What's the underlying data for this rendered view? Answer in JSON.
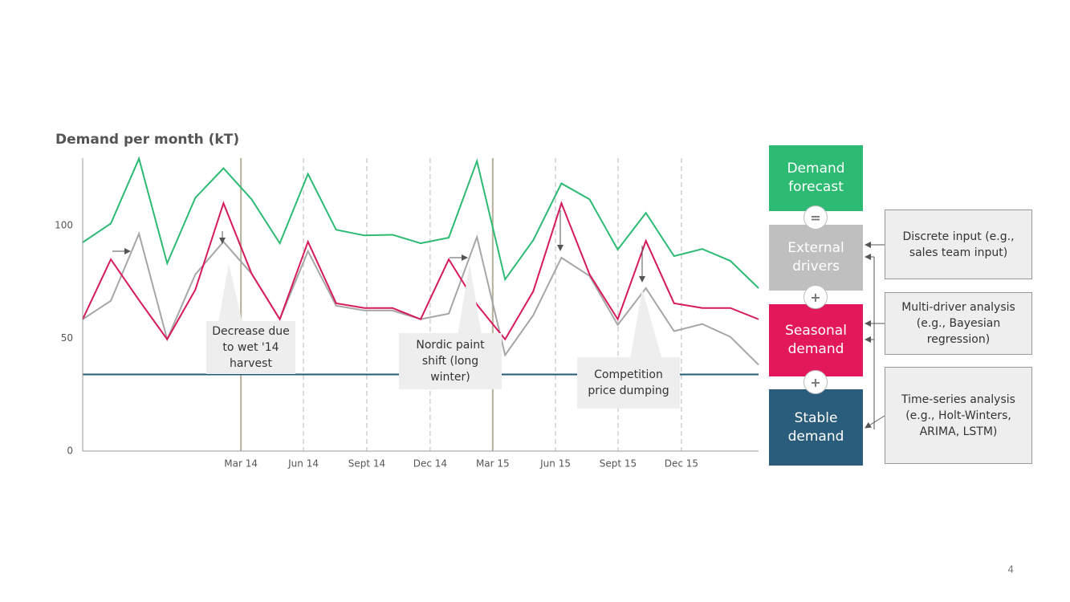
{
  "chart_data": {
    "type": "line",
    "title": "Demand per month (kT)",
    "x": [
      0,
      1,
      2,
      3,
      4,
      5,
      6,
      7,
      8,
      9,
      10,
      11,
      12,
      13,
      14,
      15,
      16,
      17,
      18,
      19,
      20,
      21,
      22,
      23,
      24
    ],
    "xlim": [
      0,
      24
    ],
    "xticks": [
      {
        "value": 5.62,
        "label": "Mar 14"
      },
      {
        "value": 7.84,
        "label": "Jun 14"
      },
      {
        "value": 10.09,
        "label": "Sept 14"
      },
      {
        "value": 12.34,
        "label": "Dec 14"
      },
      {
        "value": 14.56,
        "label": "Mar 15"
      },
      {
        "value": 16.79,
        "label": "Jun 15"
      },
      {
        "value": 19.01,
        "label": "Sept 15"
      },
      {
        "value": 21.26,
        "label": "Dec 15"
      }
    ],
    "xtick_styles": [
      "solid",
      "dashed",
      "dashed",
      "dashed",
      "solid",
      "dashed",
      "dashed",
      "dashed"
    ],
    "ylim": [
      0,
      130
    ],
    "yticks": [
      0,
      50,
      100
    ],
    "series": [
      {
        "name": "External drivers",
        "color": "#a6a6a6",
        "values": [
          58.5,
          66.7,
          96.5,
          49.6,
          78.4,
          92.9,
          78.7,
          58.5,
          88.7,
          64.5,
          62.4,
          62.4,
          58.5,
          61,
          95,
          42.6,
          60.3,
          85.8,
          77.7,
          56,
          72.3,
          53.2,
          56.4,
          50.7,
          38.3
        ]
      },
      {
        "name": "Seasonal demand",
        "color": "#d61a5a",
        "values": [
          58.5,
          85.1,
          67,
          49.6,
          71.6,
          110,
          78.7,
          58.5,
          92.9,
          65.6,
          63.5,
          63.5,
          58.5,
          85.1,
          65,
          49.6,
          70.9,
          110,
          78.4,
          58.5,
          93.3,
          65.6,
          63.5,
          63.5,
          58.5
        ]
      },
      {
        "name": "Demand forecast",
        "color": "#2dba72",
        "values": [
          92.6,
          101,
          129.8,
          83.3,
          112.4,
          125.5,
          111.7,
          92.2,
          123,
          98.2,
          95.7,
          96,
          92.2,
          94.7,
          128.7,
          76.2,
          93.6,
          118.8,
          111.7,
          89.4,
          105.7,
          86.5,
          89.7,
          84.4,
          72.3
        ]
      },
      {
        "name": "Stable demand",
        "color": "#245a78",
        "values": [
          34,
          34,
          34,
          34,
          34,
          34,
          34,
          34,
          34,
          34,
          34,
          34,
          34,
          34,
          34,
          34,
          34,
          34,
          34,
          34,
          34,
          34,
          34,
          34,
          34
        ]
      }
    ],
    "annotations": [
      "Decrease due to wet '14 harvest",
      "Nordic paint shift (long winter)",
      "Competition price dumping"
    ]
  },
  "diagram": {
    "operators": [
      "=",
      "+",
      "+"
    ],
    "methods": [
      "Discrete input (e.g., sales team input)",
      "Multi-driver analysis (e.g., Bayesian regression)",
      "Time-series analysis (e.g., Holt-Winters, ARIMA, LSTM)"
    ]
  },
  "page_number": "4"
}
